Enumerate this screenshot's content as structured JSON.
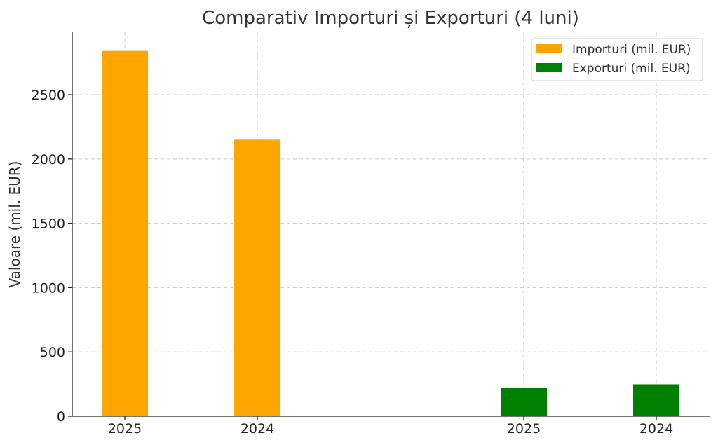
{
  "chart_data": {
    "type": "bar",
    "title": "Comparativ Importuri și Exporturi (4 luni)",
    "xlabel": "",
    "ylabel": "Valoare (mil. EUR)",
    "ylim": [
      0,
      3000
    ],
    "yticks": [
      0,
      500,
      1000,
      1500,
      2000,
      2500
    ],
    "categories": [
      "2025",
      "2024",
      "2025",
      "2024"
    ],
    "series": [
      {
        "name": "Importuri (mil. EUR)",
        "color": "#FFA500",
        "values": [
          2840,
          2150,
          null,
          null
        ]
      },
      {
        "name": "Exporturi (mil. EUR)",
        "color": "#008000",
        "values": [
          null,
          null,
          222,
          248
        ]
      }
    ],
    "grid": true,
    "legend_position": "top-right"
  }
}
